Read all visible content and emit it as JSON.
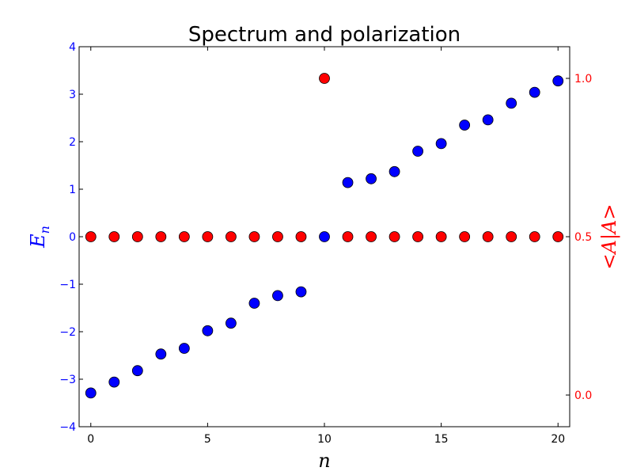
{
  "chart_data": {
    "type": "scatter",
    "title": "Spectrum and polarization",
    "xlabel": "n",
    "ylabel_left": "E_n",
    "ylabel_right": "<A|A>",
    "xlim": [
      -0.5,
      20.5
    ],
    "ylim_left": [
      -4,
      4
    ],
    "ylim_right": [
      -0.1,
      1.1
    ],
    "grid": false,
    "x_ticks": [
      0,
      5,
      10,
      15,
      20
    ],
    "left_ticks": [
      -4,
      -3,
      -2,
      -1,
      0,
      1,
      2,
      3,
      4
    ],
    "left_tick_labels": [
      "−4",
      "−3",
      "−2",
      "−1",
      "0",
      "1",
      "2",
      "3",
      "4"
    ],
    "right_ticks": [
      0.0,
      0.5,
      1.0
    ],
    "right_tick_labels": [
      "0.0",
      "0.5",
      "1.0"
    ],
    "colors": {
      "left": "#0000ff",
      "right": "#ff0000"
    },
    "x": [
      0,
      1,
      2,
      3,
      4,
      5,
      6,
      7,
      8,
      9,
      10,
      11,
      12,
      13,
      14,
      15,
      16,
      17,
      18,
      19,
      20
    ],
    "series": [
      {
        "axis": "left",
        "color": "#0000ff",
        "values": [
          -3.29,
          -3.06,
          -2.82,
          -2.47,
          -2.35,
          -1.98,
          -1.82,
          -1.4,
          -1.24,
          -1.16,
          0.0,
          1.14,
          1.22,
          1.37,
          1.8,
          1.96,
          2.35,
          2.46,
          2.81,
          3.04,
          3.28
        ]
      },
      {
        "axis": "right",
        "color": "#ff0000",
        "values": [
          0.5,
          0.5,
          0.5,
          0.5,
          0.5,
          0.5,
          0.5,
          0.5,
          0.5,
          0.5,
          1.0,
          0.5,
          0.5,
          0.5,
          0.5,
          0.5,
          0.5,
          0.5,
          0.5,
          0.5,
          0.5
        ]
      }
    ]
  }
}
